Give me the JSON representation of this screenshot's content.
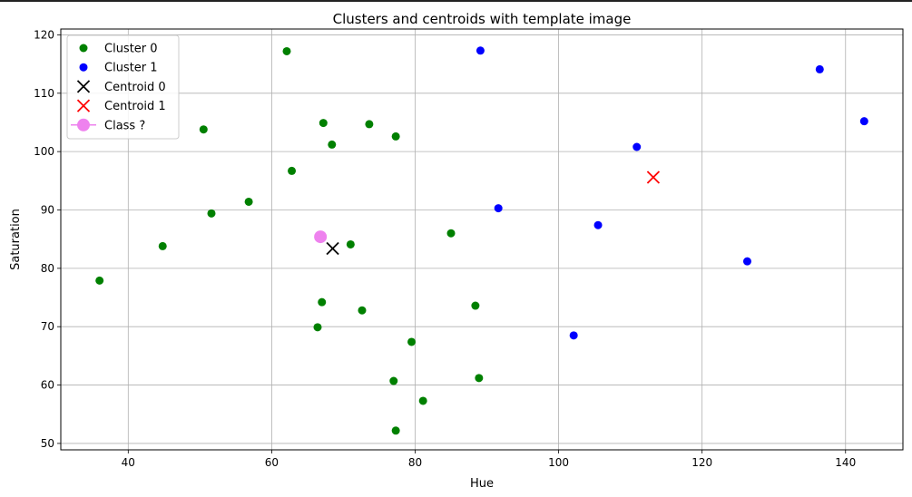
{
  "chart_data": {
    "type": "scatter",
    "title": "Clusters and centroids with template image",
    "xlabel": "Hue",
    "ylabel": "Saturation",
    "xlim": [
      30.6,
      148
    ],
    "ylim": [
      48.9,
      121
    ],
    "xticks": [
      40,
      60,
      80,
      100,
      120,
      140
    ],
    "yticks": [
      50,
      60,
      70,
      80,
      90,
      100,
      110,
      120
    ],
    "grid": true,
    "legend_position": "top-left",
    "series": [
      {
        "name": "Cluster 0",
        "marker": "circle",
        "color": "#008000",
        "points": [
          [
            36.0,
            77.9
          ],
          [
            44.8,
            83.8
          ],
          [
            50.5,
            103.8
          ],
          [
            51.6,
            89.4
          ],
          [
            56.8,
            91.4
          ],
          [
            62.1,
            117.2
          ],
          [
            62.8,
            96.7
          ],
          [
            66.4,
            69.9
          ],
          [
            67.0,
            74.2
          ],
          [
            67.2,
            104.9
          ],
          [
            68.4,
            101.2
          ],
          [
            71.0,
            84.1
          ],
          [
            72.6,
            72.8
          ],
          [
            73.6,
            104.7
          ],
          [
            77.0,
            60.7
          ],
          [
            77.3,
            102.6
          ],
          [
            77.3,
            52.2
          ],
          [
            79.5,
            67.4
          ],
          [
            81.1,
            57.3
          ],
          [
            85.0,
            86.0
          ],
          [
            88.4,
            73.6
          ],
          [
            88.9,
            61.2
          ]
        ]
      },
      {
        "name": "Cluster 1",
        "marker": "circle",
        "color": "#0000ff",
        "points": [
          [
            89.1,
            117.3
          ],
          [
            91.6,
            90.3
          ],
          [
            102.1,
            68.5
          ],
          [
            105.5,
            87.4
          ],
          [
            110.9,
            100.8
          ],
          [
            126.3,
            81.2
          ],
          [
            136.4,
            114.1
          ],
          [
            142.6,
            105.2
          ]
        ]
      },
      {
        "name": "Centroid 0",
        "marker": "x",
        "color": "#000000",
        "points": [
          [
            68.5,
            83.4
          ]
        ]
      },
      {
        "name": "Centroid 1",
        "marker": "x",
        "color": "#ff0000",
        "points": [
          [
            113.2,
            95.6
          ]
        ]
      },
      {
        "name": " Class ?",
        "marker": "big-circle",
        "color": "#ee82ee",
        "points": [
          [
            66.8,
            85.4
          ]
        ]
      }
    ]
  }
}
